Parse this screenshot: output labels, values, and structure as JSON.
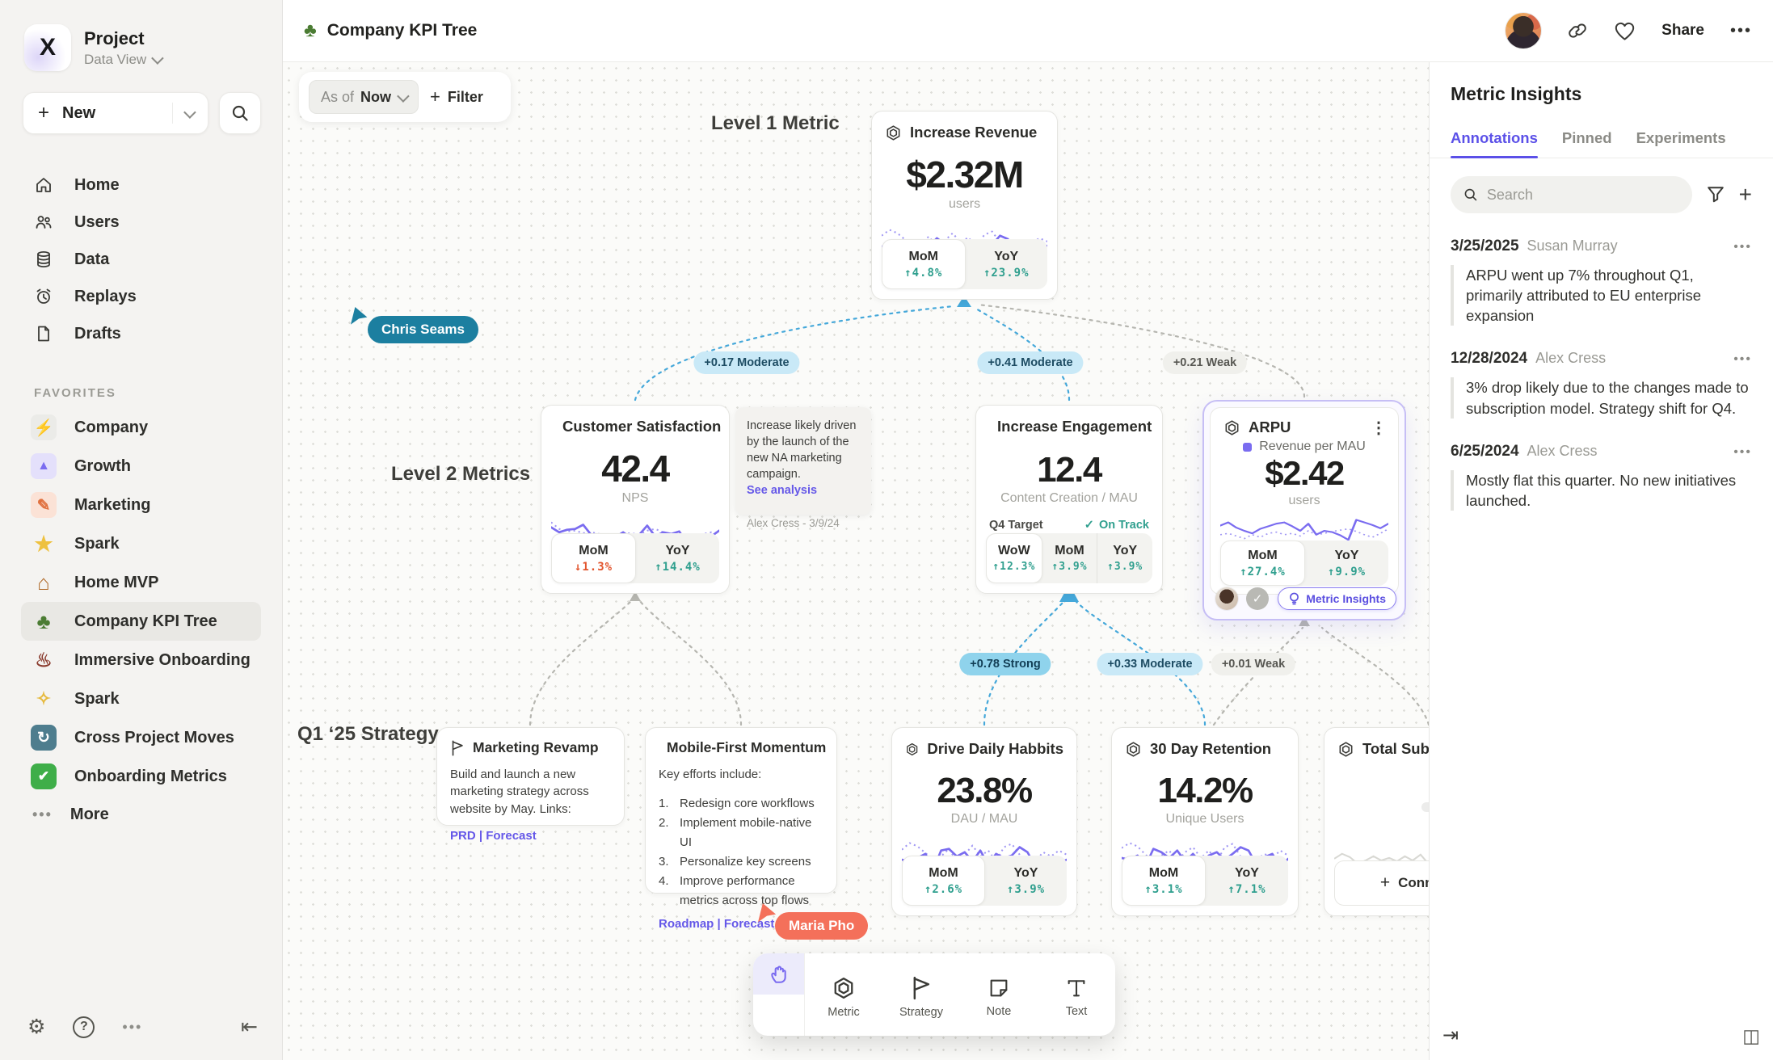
{
  "colors": {
    "accent_purple": "#7a6cf0",
    "link_purple": "#6558e8",
    "stat_green": "#2f9f8e",
    "stat_red": "#e2552e",
    "edge_blue": "#45a8da",
    "cursor_teal": "#1c7fa0",
    "cursor_coral": "#f4705a",
    "tab_purple": "#5b50e8"
  },
  "sidebar": {
    "project_name": "Project",
    "project_view": "Data View",
    "new_label": "New",
    "favorites_title": "FAVORITES",
    "more_label": "More",
    "nav": [
      {
        "label": "Home"
      },
      {
        "label": "Users"
      },
      {
        "label": "Data"
      },
      {
        "label": "Replays"
      },
      {
        "label": "Drafts"
      }
    ],
    "favorites": [
      {
        "glyph": "⚡",
        "label": "Company"
      },
      {
        "glyph": "▲",
        "label": "Growth"
      },
      {
        "glyph": "✎",
        "label": "Marketing"
      },
      {
        "glyph": "★",
        "label": "Spark"
      },
      {
        "glyph": "⌂",
        "label": "Home MVP"
      },
      {
        "glyph": "♣",
        "label": "Company KPI Tree"
      },
      {
        "glyph": "♨",
        "label": "Immersive Onboarding"
      },
      {
        "glyph": "✧",
        "label": "Spark"
      },
      {
        "glyph": "↻",
        "label": "Cross Project Moves"
      },
      {
        "glyph": "✔",
        "label": "Onboarding Metrics"
      }
    ]
  },
  "topbar": {
    "title": "Company KPI Tree",
    "tree_glyph": "♣",
    "share_label": "Share"
  },
  "canvas": {
    "asof_label": "As of",
    "asof_value": "Now",
    "filter_label": "Filter",
    "labels": {
      "level1": "Level 1 Metric",
      "level2": "Level 2 Metrics",
      "strategy": "Q1 ‘25 Strategy"
    },
    "cursors": [
      {
        "name": "Chris Seams"
      },
      {
        "name": "Maria Pho"
      }
    ],
    "edges": {
      "level2": [
        {
          "label": "+0.17 Moderate",
          "strength": "moderate"
        },
        {
          "label": "+0.41 Moderate",
          "strength": "moderate"
        },
        {
          "label": "+0.21 Weak",
          "strength": "weak"
        }
      ],
      "strategy": [
        {
          "label": "+0.78 Strong",
          "strength": "strong"
        },
        {
          "label": "+0.33 Moderate",
          "strength": "moderate"
        },
        {
          "label": "+0.01 Weak",
          "strength": "weak"
        }
      ]
    }
  },
  "cards": {
    "revenue": {
      "title": "Increase Revenue",
      "value": "$2.32M",
      "unit": "users",
      "stats": [
        {
          "label": "MoM",
          "value": "↑4.8%"
        },
        {
          "label": "YoY",
          "value": "↑23.9%"
        }
      ],
      "spark": {
        "solid": [
          34,
          37,
          41,
          47,
          30,
          27,
          34,
          24,
          31,
          39,
          27,
          43,
          30,
          34,
          32,
          21,
          25,
          39,
          35,
          41,
          37,
          33
        ],
        "dashed": [
          21,
          14,
          18,
          26,
          33,
          29,
          22,
          35,
          27,
          18,
          29,
          23,
          36,
          20,
          16,
          29,
          43,
          33,
          26,
          30,
          24,
          28
        ]
      }
    },
    "satisfaction": {
      "title": "Customer Satisfaction",
      "value": "42.4",
      "unit": "NPS",
      "stats": [
        {
          "label": "MoM",
          "value": "↓1.3%"
        },
        {
          "label": "YoY",
          "value": "↑14.4%"
        }
      ],
      "spark": {
        "solid": [
          18,
          24,
          21,
          20,
          15,
          27,
          34,
          42,
          30,
          24,
          31,
          27,
          16,
          29,
          24,
          26,
          23,
          37,
          44,
          39,
          29,
          22
        ],
        "dashed": [
          12,
          20,
          23,
          22,
          25,
          24,
          26,
          27,
          28,
          26,
          25,
          27,
          22,
          20,
          24,
          29,
          31,
          30,
          28,
          26,
          24,
          25
        ]
      }
    },
    "engagement": {
      "title": "Increase Engagement",
      "value": "12.4",
      "unit": "Content Creation / MAU",
      "target_label": "Q4 Target",
      "target_status": "On Track",
      "target_check": "✓",
      "target_pct": 42,
      "stats": [
        {
          "label": "WoW",
          "value": "↑12.3%"
        },
        {
          "label": "MoM",
          "value": "↑3.9%"
        },
        {
          "label": "YoY",
          "value": "↑3.9%"
        }
      ]
    },
    "arpu": {
      "title": "ARPU",
      "legend": "Revenue per MAU",
      "value": "$2.42",
      "unit": "users",
      "kebab": "⋮",
      "stats": [
        {
          "label": "MoM",
          "value": "↑27.4%"
        },
        {
          "label": "YoY",
          "value": "↑9.9%"
        }
      ],
      "insights_label": "Metric Insights",
      "check_glyph": "✓",
      "spark": {
        "solid": [
          22,
          17,
          25,
          30,
          34,
          27,
          23,
          19,
          17,
          23,
          30,
          19,
          36,
          30,
          32,
          37,
          44,
          13,
          17,
          21,
          26,
          19
        ],
        "dashed": [
          36,
          34,
          38,
          42,
          36,
          40,
          34,
          32,
          36,
          34,
          38,
          30,
          36,
          34,
          31,
          29,
          27,
          31,
          36,
          40,
          34,
          27
        ]
      }
    },
    "note": {
      "text": "Increase likely driven by the launch of the new NA marketing campaign.",
      "link_label": "See analysis",
      "author": "Alex Cress - 3/9/24"
    },
    "marketing_revamp": {
      "title": "Marketing Revamp",
      "body": "Build and launch a new marketing strategy across website by May. Links:",
      "links": "PRD | Forecast"
    },
    "mobile_first": {
      "title": "Mobile-First Momentum",
      "intro": "Key efforts include:",
      "items": [
        "Redesign core workflows",
        "Implement mobile-native UI",
        "Personalize key screens",
        "Improve performance metrics across top flows"
      ],
      "links": "Roadmap | Forecast"
    },
    "daily_habits": {
      "title": "Drive Daily Habbits",
      "value": "23.8%",
      "unit": "DAU / MAU",
      "stats": [
        {
          "label": "MoM",
          "value": "↑2.6%"
        },
        {
          "label": "YoY",
          "value": "↑3.9%"
        }
      ],
      "spark": {
        "solid": [
          32,
          34,
          30,
          25,
          44,
          21,
          19,
          28,
          23,
          34,
          21,
          38,
          25,
          30,
          27,
          17,
          23,
          40,
          33,
          29,
          36,
          32
        ],
        "dashed": [
          20,
          12,
          16,
          24,
          32,
          28,
          19,
          34,
          26,
          15,
          28,
          21,
          34,
          17,
          13,
          26,
          42,
          34,
          23,
          28,
          21,
          26
        ]
      }
    },
    "retention": {
      "title": "30 Day Retention",
      "value": "14.2%",
      "unit": "Unique Users",
      "stats": [
        {
          "label": "MoM",
          "value": "↑3.1%"
        },
        {
          "label": "YoY",
          "value": "↑7.1%"
        }
      ],
      "spark": {
        "solid": [
          30,
          32,
          27,
          40,
          19,
          23,
          30,
          21,
          34,
          25,
          36,
          27,
          23,
          32,
          25,
          17,
          21,
          38,
          29,
          25,
          40,
          31
        ],
        "dashed": [
          18,
          12,
          16,
          26,
          34,
          27,
          21,
          34,
          23,
          17,
          30,
          21,
          34,
          17,
          13,
          28,
          40,
          32,
          25,
          30,
          21,
          27
        ]
      }
    },
    "subscriptions": {
      "title": "Total Subscript",
      "connect_label": "Connect",
      "spark": {
        "faint": [
          28,
          22,
          26,
          34,
          30,
          25,
          30,
          27,
          31,
          25,
          30,
          23,
          34,
          19,
          28,
          31,
          25,
          30,
          23,
          28,
          31,
          26
        ]
      }
    }
  },
  "toolbar": {
    "tools": [
      {
        "label": "Metric"
      },
      {
        "label": "Strategy"
      },
      {
        "label": "Note"
      },
      {
        "label": "Text"
      }
    ]
  },
  "insights": {
    "title": "Metric Insights",
    "tabs": [
      {
        "label": "Annotations"
      },
      {
        "label": "Pinned"
      },
      {
        "label": "Experiments"
      }
    ],
    "search_placeholder": "Search",
    "annotations": [
      {
        "date": "3/25/2025",
        "author": "Susan Murray",
        "text": "ARPU went up 7% throughout Q1, primarily attributed to EU enterprise expansion"
      },
      {
        "date": "12/28/2024",
        "author": "Alex Cress",
        "text": "3% drop likely due to the changes made to subscription model. Strategy shift for Q4."
      },
      {
        "date": "6/25/2024",
        "author": "Alex Cress",
        "text": "Mostly flat this quarter. No new initiatives launched."
      }
    ]
  }
}
